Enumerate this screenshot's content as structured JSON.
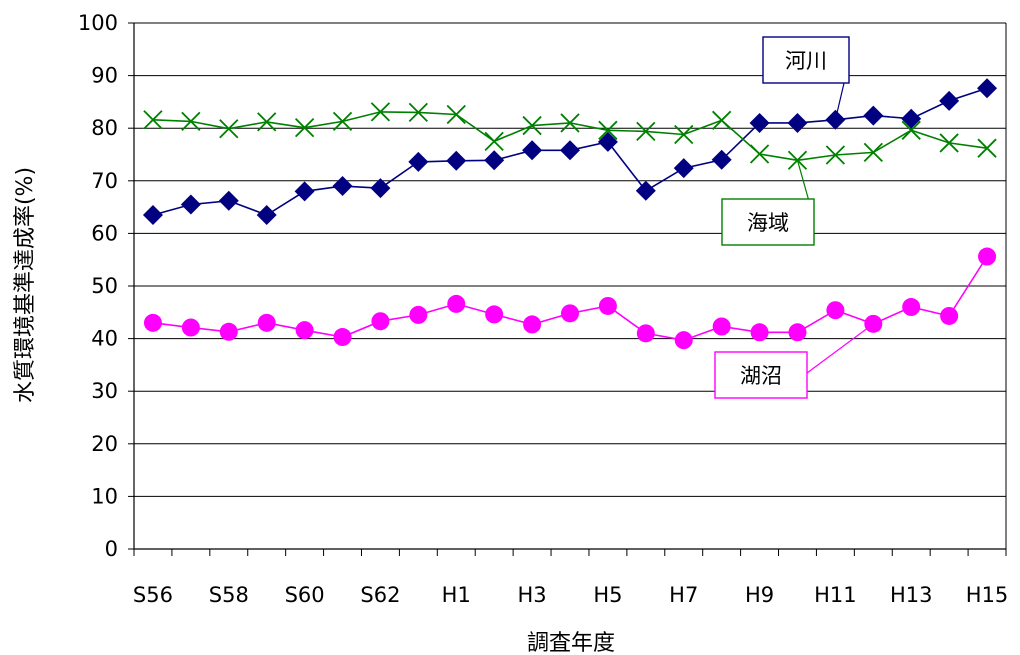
{
  "chart_data": {
    "type": "line",
    "title": "",
    "xlabel": "調査年度",
    "ylabel": "水質環境基準達成率(%)",
    "ylim": [
      0,
      100
    ],
    "yticks": [
      0,
      10,
      20,
      30,
      40,
      50,
      60,
      70,
      80,
      90,
      100
    ],
    "grid": "horizontal",
    "categories": [
      "S56",
      "S57",
      "S58",
      "S59",
      "S60",
      "S61",
      "S62",
      "S63",
      "H1",
      "H2",
      "H3",
      "H4",
      "H5",
      "H6",
      "H7",
      "H8",
      "H9",
      "H10",
      "H11",
      "H12",
      "H13",
      "H14",
      "H15"
    ],
    "tick_labels": [
      "S56",
      "S58",
      "S60",
      "S62",
      "H1",
      "H3",
      "H5",
      "H7",
      "H9",
      "H11",
      "H13",
      "H15"
    ],
    "series": [
      {
        "name": "河川",
        "color": "#000080",
        "marker": "diamond",
        "values": [
          63.5,
          65.5,
          66.2,
          63.5,
          68.0,
          69.0,
          68.6,
          73.6,
          73.8,
          73.9,
          75.8,
          75.8,
          77.4,
          68.1,
          72.4,
          74.0,
          81.0,
          81.0,
          81.6,
          82.4,
          81.8,
          85.2,
          87.6
        ]
      },
      {
        "name": "海域",
        "color": "#008000",
        "marker": "x",
        "values": [
          81.6,
          81.3,
          79.9,
          81.2,
          80.1,
          81.3,
          83.1,
          83.0,
          82.6,
          77.5,
          80.5,
          81.0,
          79.6,
          79.4,
          78.8,
          81.5,
          75.1,
          73.9,
          74.9,
          75.4,
          79.6,
          77.2,
          76.2
        ]
      },
      {
        "name": "湖沼",
        "color": "#ff00ff",
        "marker": "circle",
        "values": [
          43.0,
          42.1,
          41.3,
          43.0,
          41.6,
          40.3,
          43.3,
          44.5,
          46.6,
          44.6,
          42.7,
          44.8,
          46.2,
          41.0,
          39.7,
          42.3,
          41.2,
          41.2,
          45.4,
          42.8,
          46.0,
          44.3,
          55.6
        ]
      }
    ],
    "callouts": [
      {
        "series": "河川",
        "label": "河川"
      },
      {
        "series": "海域",
        "label": "海域"
      },
      {
        "series": "湖沼",
        "label": "湖沼"
      }
    ]
  }
}
